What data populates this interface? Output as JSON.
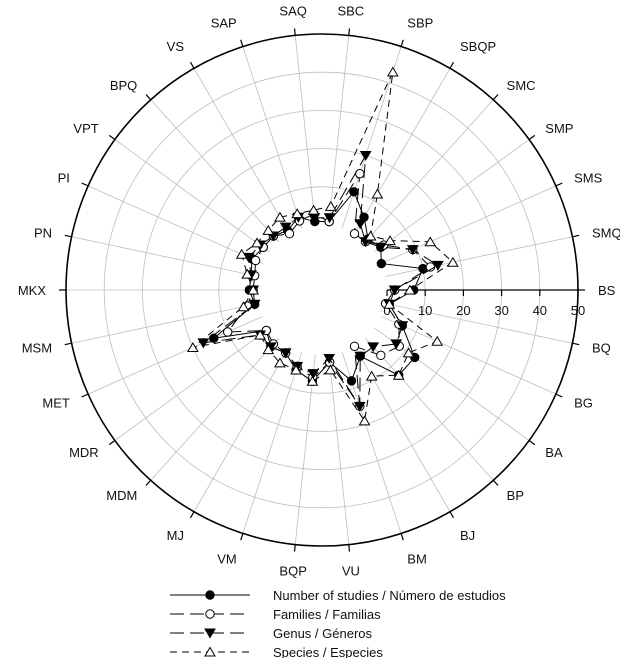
{
  "chart_data": {
    "type": "radar",
    "categories": [
      "BS",
      "BQ",
      "BG",
      "BA",
      "BP",
      "BJ",
      "BM",
      "VU",
      "BQP",
      "VM",
      "MJ",
      "MDM",
      "MDR",
      "MET",
      "MSM",
      "MKX",
      "PN",
      "PI",
      "VPT",
      "BPQ",
      "VS",
      "SAP",
      "SAQ",
      "SBC",
      "SBP",
      "SBQP",
      "SMC",
      "SMP",
      "SMS",
      "SMQ"
    ],
    "radial_ticks": [
      0,
      10,
      20,
      30,
      40,
      50
    ],
    "rlim": [
      0,
      50
    ],
    "grid": true,
    "series": [
      {
        "name": "Number of studies / Número de estudios",
        "values": [
          7,
          1,
          6,
          13,
          13,
          3,
          8,
          2,
          7,
          5,
          2,
          3,
          1,
          14,
          1,
          2,
          2,
          3,
          2,
          2,
          1,
          3,
          1,
          1,
          10,
          5,
          1,
          2,
          0,
          10
        ]
      },
      {
        "name": "Families / Familias",
        "values": [
          2,
          0,
          5,
          8,
          6,
          0,
          15,
          2,
          6,
          4,
          2,
          2,
          1,
          10,
          3,
          1,
          1,
          2,
          2,
          2,
          0,
          2,
          3,
          1,
          15,
          0,
          0,
          3,
          9,
          12
        ]
      },
      {
        "name": "Genus / Géneros",
        "values": [
          2,
          1,
          6,
          7,
          3,
          3,
          15,
          1,
          5,
          4,
          2,
          3,
          3,
          17,
          1,
          1,
          2,
          4,
          3,
          2,
          2,
          3,
          2,
          2,
          20,
          3,
          0,
          2,
          9,
          14
        ]
      },
      {
        "name": "Species / Especies",
        "values": [
          6,
          1,
          16,
          11,
          13,
          9,
          19,
          4,
          7,
          5,
          5,
          4,
          3,
          20,
          4,
          1,
          3,
          6,
          4,
          4,
          5,
          4,
          4,
          5,
          43,
          12,
          2,
          5,
          14,
          18
        ]
      }
    ]
  },
  "legend": {
    "items": [
      {
        "label": "Number of studies / Número de estudios",
        "style": "solid",
        "marker": "filled-circle"
      },
      {
        "label": "Families / Familias",
        "style": "long-dash",
        "marker": "open-circle"
      },
      {
        "label": "Genus / Géneros",
        "style": "long-dash",
        "marker": "filled-triangle-down"
      },
      {
        "label": "Species / Especies",
        "style": "short-dash",
        "marker": "open-triangle-up"
      }
    ]
  }
}
